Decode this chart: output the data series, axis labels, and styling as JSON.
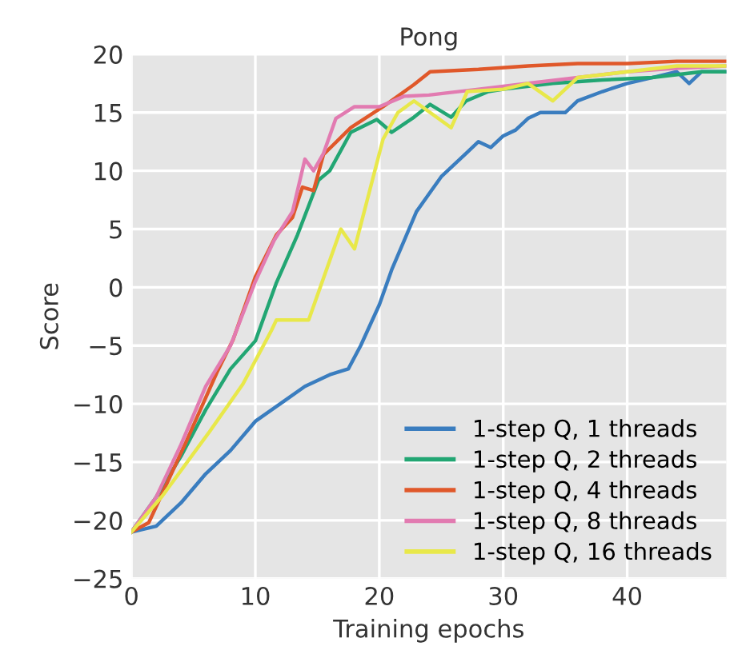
{
  "chart_data": {
    "type": "line",
    "title": "Pong",
    "xlabel": "Training epochs",
    "ylabel": "Score",
    "xlim": [
      0,
      48
    ],
    "ylim": [
      -25,
      20
    ],
    "xticks": [
      0,
      10,
      20,
      30,
      40
    ],
    "yticks": [
      -25,
      -20,
      -15,
      -10,
      -5,
      0,
      5,
      10,
      15,
      20
    ],
    "grid": true,
    "legend": "bottom right",
    "marker": "none",
    "line_style": "solid",
    "series": [
      {
        "name": "1-step Q, 1 threads",
        "color": "#3a7dbf",
        "x": [
          0,
          2,
          4,
          6,
          8,
          10,
          12,
          14,
          16,
          17.5,
          18.5,
          20,
          21,
          22,
          23,
          24,
          25,
          26,
          27,
          28,
          29,
          30,
          31,
          32,
          33,
          34,
          35,
          36,
          38,
          40,
          42,
          44,
          45,
          46,
          48
        ],
        "values": [
          -21,
          -20.5,
          -18.5,
          -16,
          -14,
          -11.5,
          -10,
          -8.5,
          -7.5,
          -7,
          -5,
          -1.5,
          1.5,
          4,
          6.5,
          8,
          9.5,
          10.5,
          11.5,
          12.5,
          12,
          13,
          13.5,
          14.5,
          15,
          15,
          15,
          16,
          16.8,
          17.5,
          18,
          18.5,
          17.5,
          18.5,
          18.5
        ]
      },
      {
        "name": "1-step Q, 2 threads",
        "color": "#22a673",
        "x": [
          0,
          2,
          4,
          6,
          8,
          10,
          11.7,
          13.4,
          15.1,
          16,
          17.7,
          19.8,
          21,
          22.8,
          24.1,
          25.8,
          27,
          28.8,
          30,
          34,
          38,
          42,
          46,
          48
        ],
        "values": [
          -21,
          -18,
          -14.5,
          -10.5,
          -7,
          -4.6,
          0.4,
          4.5,
          9.2,
          10,
          13.3,
          14.4,
          13.3,
          14.6,
          15.7,
          14.6,
          16,
          16.8,
          17,
          17.5,
          17.8,
          18,
          18.5,
          18.5
        ]
      },
      {
        "name": "1-step Q, 4 threads",
        "color": "#e0582a",
        "x": [
          0,
          1.4,
          4.4,
          6.9,
          8.2,
          10,
          11.7,
          13,
          13.8,
          14.7,
          15.5,
          17.7,
          20.3,
          22.8,
          24.1,
          28,
          32,
          36,
          40,
          44,
          48
        ],
        "values": [
          -21,
          -20.2,
          -13.3,
          -7.3,
          -4.5,
          0.9,
          4.5,
          6,
          8.6,
          8.3,
          11.4,
          13.7,
          15.5,
          17.4,
          18.5,
          18.7,
          19,
          19.2,
          19.2,
          19.4,
          19.4
        ]
      },
      {
        "name": "1-step Q, 8 threads",
        "color": "#e27bb1",
        "x": [
          0,
          2,
          4,
          6,
          8,
          10,
          11.5,
          13,
          14,
          14.7,
          15.5,
          16.5,
          18,
          20,
          22,
          24,
          28,
          32,
          36,
          40,
          44,
          48
        ],
        "values": [
          -21,
          -18,
          -13.5,
          -8.5,
          -5,
          0.5,
          4,
          6.5,
          11,
          10,
          11.5,
          14.5,
          15.5,
          15.5,
          16.4,
          16.5,
          17,
          17.5,
          18,
          18.5,
          18.8,
          19
        ]
      },
      {
        "name": "1-step Q, 16 threads",
        "color": "#e8e84a",
        "x": [
          0,
          2.5,
          6.3,
          9,
          11.3,
          11.7,
          14.3,
          16.9,
          18,
          20.3,
          21.5,
          22.8,
          24.1,
          25.8,
          27.1,
          30,
          32,
          34,
          36,
          40,
          44,
          48
        ],
        "values": [
          -21,
          -17.9,
          -12.4,
          -8.3,
          -3.7,
          -2.8,
          -2.8,
          5,
          3.3,
          12.7,
          15,
          16,
          15,
          13.7,
          16.8,
          17,
          17.5,
          16,
          18,
          18.5,
          19,
          19
        ]
      }
    ]
  }
}
